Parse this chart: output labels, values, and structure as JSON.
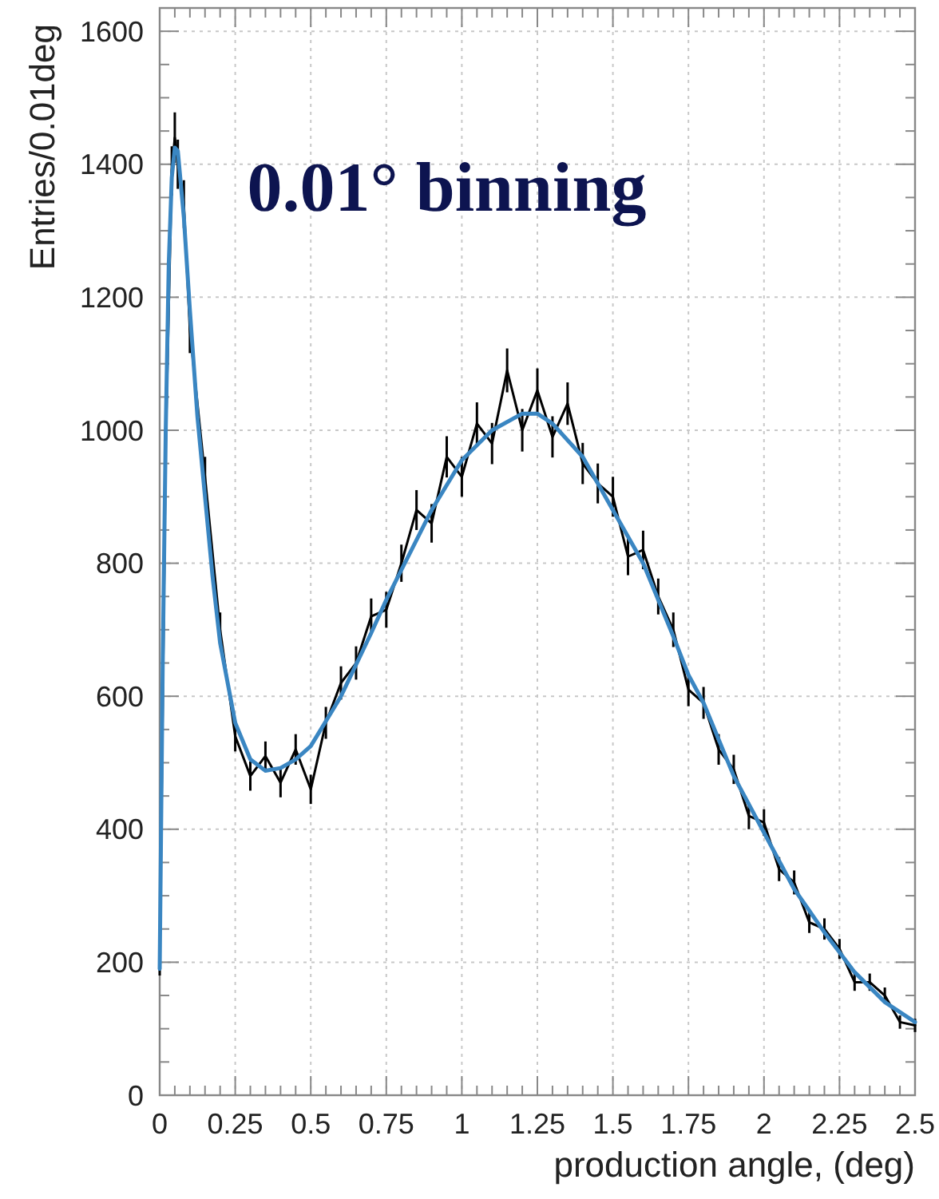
{
  "chart_data": {
    "type": "line",
    "xlabel": "production angle, (deg)",
    "ylabel": "Entries/0.01deg",
    "annotations": [
      "0.01° binning"
    ],
    "xlim": [
      0,
      2.5
    ],
    "ylim": [
      0,
      1635
    ],
    "xticks": [
      0,
      0.25,
      0.5,
      0.75,
      1,
      1.25,
      1.5,
      1.75,
      2,
      2.25,
      2.5
    ],
    "yticks": [
      0,
      200,
      400,
      600,
      800,
      1000,
      1200,
      1400,
      1600
    ],
    "grid": true,
    "marker": "none",
    "line_style": "solid",
    "series": [
      {
        "color": "#000000",
        "x": [
          0,
          0.02,
          0.04,
          0.05,
          0.06,
          0.08,
          0.1,
          0.15,
          0.2,
          0.25,
          0.3,
          0.35,
          0.4,
          0.45,
          0.5,
          0.55,
          0.6,
          0.65,
          0.7,
          0.75,
          0.8,
          0.85,
          0.9,
          0.95,
          1,
          1.05,
          1.1,
          1.15,
          1.2,
          1.25,
          1.3,
          1.35,
          1.4,
          1.45,
          1.5,
          1.55,
          1.6,
          1.65,
          1.7,
          1.75,
          1.8,
          1.85,
          1.9,
          1.95,
          2,
          2.05,
          2.1,
          2.15,
          2.2,
          2.25,
          2.3,
          2.35,
          2.4,
          2.45,
          2.5
        ],
        "values": [
          195,
          980,
          1390,
          1440,
          1400,
          1340,
          1150,
          930,
          700,
          540,
          480,
          510,
          470,
          520,
          460,
          560,
          620,
          650,
          720,
          730,
          800,
          880,
          860,
          960,
          930,
          1010,
          980,
          1090,
          1000,
          1060,
          990,
          1040,
          950,
          920,
          900,
          810,
          820,
          750,
          700,
          610,
          590,
          520,
          490,
          420,
          410,
          340,
          320,
          260,
          250,
          220,
          170,
          170,
          150,
          110,
          105
        ],
        "errors": [
          15,
          30,
          37,
          38,
          37,
          36,
          34,
          30,
          26,
          23,
          22,
          22,
          22,
          23,
          22,
          24,
          25,
          25,
          27,
          27,
          28,
          30,
          29,
          31,
          30,
          32,
          31,
          33,
          32,
          33,
          31,
          32,
          31,
          30,
          30,
          28,
          29,
          27,
          26,
          25,
          24,
          23,
          22,
          20,
          20,
          18,
          18,
          16,
          16,
          15,
          13,
          13,
          12,
          10,
          10
        ]
      },
      {
        "color": "#3a86c2",
        "x": [
          0,
          0.01,
          0.02,
          0.03,
          0.04,
          0.05,
          0.06,
          0.08,
          0.1,
          0.125,
          0.15,
          0.175,
          0.2,
          0.25,
          0.3,
          0.35,
          0.4,
          0.45,
          0.5,
          0.6,
          0.7,
          0.75,
          0.8,
          0.9,
          1,
          1.1,
          1.2,
          1.25,
          1.3,
          1.4,
          1.5,
          1.6,
          1.7,
          1.75,
          1.8,
          1.9,
          2,
          2.1,
          2.2,
          2.25,
          2.3,
          2.4,
          2.5
        ],
        "values": [
          190,
          650,
          1000,
          1250,
          1380,
          1425,
          1420,
          1320,
          1180,
          1020,
          900,
          780,
          680,
          560,
          505,
          488,
          492,
          505,
          525,
          600,
          695,
          745,
          790,
          880,
          955,
          1000,
          1025,
          1025,
          1010,
          960,
          880,
          800,
          690,
          632,
          590,
          480,
          395,
          310,
          245,
          215,
          185,
          140,
          110
        ]
      }
    ]
  }
}
